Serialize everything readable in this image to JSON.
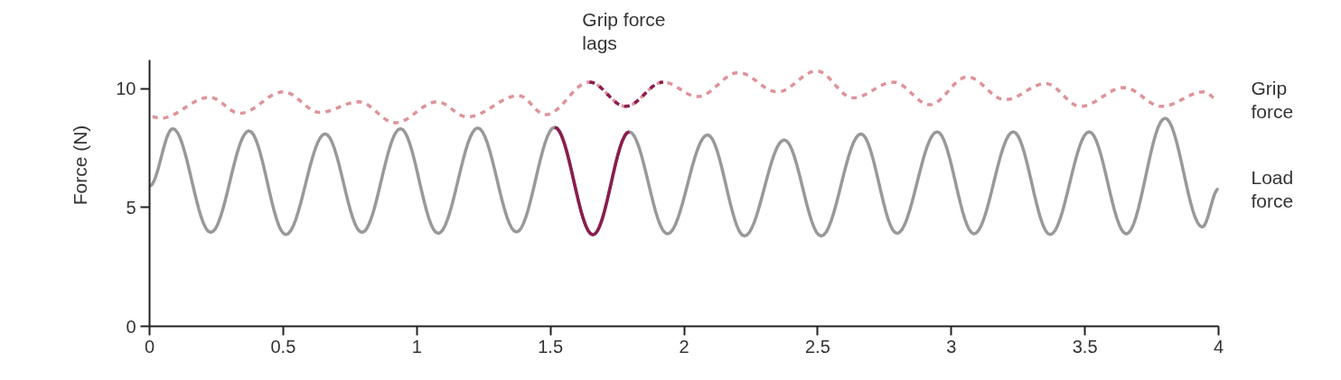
{
  "chart_data": {
    "type": "line",
    "ylabel": "Force (N)",
    "xlim": [
      0,
      4
    ],
    "ylim": [
      0,
      11.2
    ],
    "xticks": [
      0,
      0.5,
      1,
      1.5,
      2,
      2.5,
      3,
      3.5,
      4
    ],
    "yticks": [
      0,
      5,
      10
    ],
    "grid": false,
    "marker": "none",
    "annotations": [
      "Grip force lags"
    ],
    "series": [
      {
        "name": "Grip force",
        "color": "#de9399",
        "line_style": "dashed",
        "x": [
          0.011,
          0.04,
          0.225,
          0.338,
          0.501,
          0.637,
          0.783,
          0.919,
          1.076,
          1.189,
          1.381,
          1.482,
          1.646,
          1.781,
          1.922,
          2.051,
          2.203,
          2.35,
          2.496,
          2.632,
          2.784,
          2.919,
          3.06,
          3.201,
          3.353,
          3.483,
          3.646,
          3.787,
          3.945,
          4.0
        ],
        "values": [
          8.81,
          8.75,
          9.63,
          8.96,
          9.86,
          9.0,
          9.44,
          8.56,
          9.44,
          8.81,
          9.7,
          8.9,
          10.27,
          9.25,
          10.27,
          9.66,
          10.67,
          9.86,
          10.74,
          9.61,
          10.27,
          9.32,
          10.49,
          9.53,
          10.21,
          9.25,
          10.04,
          9.25,
          9.86,
          9.53
        ]
      },
      {
        "name": "Load force",
        "color": "#999999",
        "line_style": "solid",
        "x": [
          0.0,
          0.087,
          0.229,
          0.372,
          0.51,
          0.657,
          0.795,
          0.939,
          1.08,
          1.228,
          1.373,
          1.516,
          1.659,
          1.795,
          1.938,
          2.088,
          2.226,
          2.375,
          2.513,
          2.662,
          2.797,
          2.947,
          3.085,
          3.232,
          3.37,
          3.516,
          3.655,
          3.8,
          3.939,
          4.0
        ],
        "values": [
          5.9,
          8.31,
          3.95,
          8.22,
          3.86,
          8.09,
          3.95,
          8.31,
          3.91,
          8.34,
          3.97,
          8.37,
          3.85,
          8.18,
          3.89,
          8.05,
          3.8,
          7.84,
          3.8,
          8.09,
          3.91,
          8.18,
          3.89,
          8.18,
          3.86,
          8.18,
          3.89,
          8.75,
          4.18,
          5.78
        ]
      },
      {
        "color": "#8b1d4e",
        "line_style": "dashed",
        "x": [
          1.646,
          1.781,
          1.922
        ],
        "values": [
          10.27,
          9.25,
          10.27
        ]
      },
      {
        "color": "#8b1d4e",
        "line_style": "solid",
        "x": [
          1.516,
          1.659,
          1.795
        ],
        "values": [
          8.37,
          3.85,
          8.18
        ]
      }
    ]
  }
}
